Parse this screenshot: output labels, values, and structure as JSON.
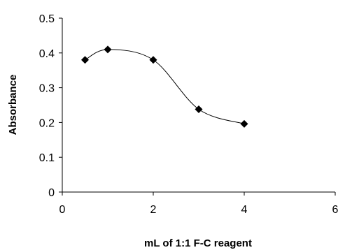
{
  "chart_data": {
    "type": "scatter",
    "xlabel": "mL of 1:1 F-C reagent",
    "ylabel": "Absorbance",
    "xlim": [
      0,
      6
    ],
    "ylim": [
      0,
      0.5
    ],
    "x_ticks": [
      "0",
      "2",
      "4",
      "6"
    ],
    "y_ticks": [
      "0",
      "0.1",
      "0.2",
      "0.3",
      "0.4",
      "0.5"
    ],
    "grid": false,
    "legend": "none",
    "line_style": "smooth",
    "marker": "diamond",
    "series": [
      {
        "x": [
          0.5,
          1,
          2,
          3,
          4
        ],
        "y": [
          0.38,
          0.41,
          0.38,
          0.238,
          0.196
        ]
      }
    ],
    "colors": {
      "marker": "#000000",
      "line": "#000000",
      "axis": "#000000"
    }
  }
}
